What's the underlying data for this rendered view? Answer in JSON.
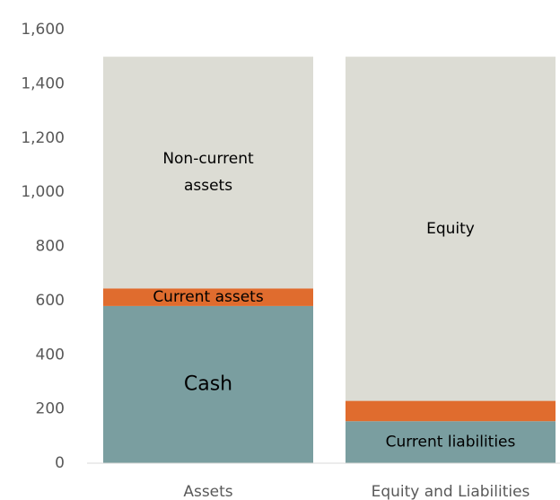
{
  "chart_data": {
    "type": "stacked_bar",
    "categories": [
      "Assets",
      "Equity and Liabilities"
    ],
    "series": [
      {
        "color": "#7a9ea0",
        "values": [
          580,
          155
        ],
        "labels": [
          [
            "Cash"
          ],
          [
            "Current liabilities"
          ]
        ]
      },
      {
        "color": "#e06c2e",
        "values": [
          65,
          75
        ],
        "labels": [
          [
            "Current assets"
          ],
          null
        ]
      },
      {
        "color": "#dcdcd4",
        "values": [
          855,
          1270
        ],
        "labels": [
          [
            "Non-current",
            "assets"
          ],
          [
            "Equity"
          ]
        ]
      }
    ],
    "ylim": [
      0,
      1600
    ],
    "yticks": [
      0,
      200,
      400,
      600,
      800,
      {
        "value": 1000,
        "label": "1,000"
      },
      {
        "value": 1200,
        "label": "1,200"
      },
      {
        "value": 1400,
        "label": "1,400"
      },
      {
        "value": 1600,
        "label": "1,600"
      }
    ]
  }
}
